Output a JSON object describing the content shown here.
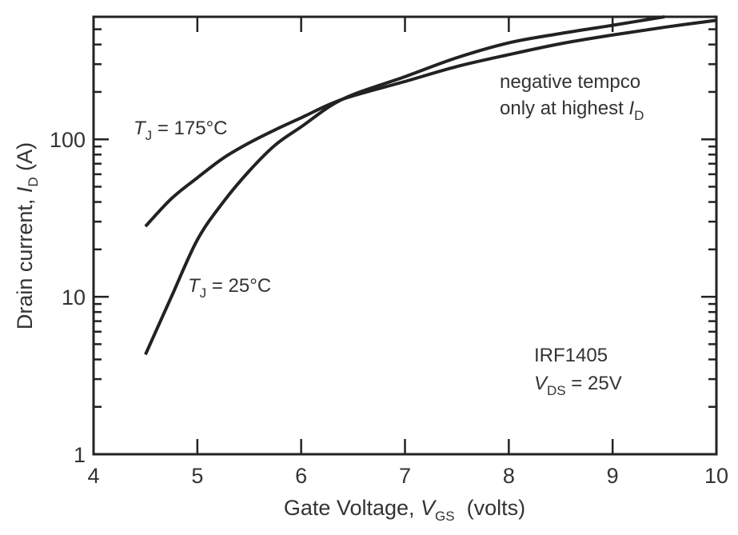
{
  "chart_data": {
    "type": "line",
    "title": "",
    "xlabel": {
      "main": "Gate Voltage, ",
      "var": "V",
      "sub": "GS",
      "unit": "  (volts)"
    },
    "ylabel": {
      "main": "Drain current, ",
      "var": "I",
      "sub": "D",
      "unit": " (A)"
    },
    "xlim": [
      4,
      10
    ],
    "ylim": [
      1,
      600
    ],
    "yscale": "log",
    "x_ticks": [
      "4",
      "5",
      "6",
      "7",
      "8",
      "9",
      "10"
    ],
    "y_ticks": [
      "1",
      "10",
      "100"
    ],
    "grid": false,
    "series": [
      {
        "name": "TJ = 25°C",
        "x": [
          4.5,
          4.75,
          5.0,
          5.25,
          5.5,
          5.75,
          6.0,
          6.4,
          7.0,
          7.5,
          8.0,
          8.5,
          9.0,
          9.5
        ],
        "y": [
          4.3,
          10,
          23,
          40,
          63,
          92,
          120,
          180,
          250,
          330,
          410,
          470,
          530,
          610
        ]
      },
      {
        "name": "TJ = 175°C",
        "x": [
          4.5,
          4.75,
          5.0,
          5.25,
          5.5,
          5.75,
          6.0,
          6.4,
          7.0,
          7.5,
          8.0,
          8.5,
          9.0,
          9.5,
          10.0
        ],
        "y": [
          28,
          42,
          57,
          76,
          95,
          115,
          137,
          180,
          233,
          290,
          345,
          405,
          460,
          515,
          570
        ]
      }
    ],
    "annotations": {
      "t175": {
        "var": "T",
        "sub": "J",
        "text": " = 175°C"
      },
      "t25": {
        "var": "T",
        "sub": "J",
        "text": " = 25°C"
      },
      "tempco_line1": "negative tempco",
      "tempco_line2": "only at highest ",
      "tempco_var": "I",
      "tempco_sub": "D",
      "device": "IRF1405",
      "vds_var": "V",
      "vds_sub": "DS",
      "vds_text": " = 25V"
    },
    "colors": {
      "line": "#222222",
      "text": "#333333"
    }
  }
}
